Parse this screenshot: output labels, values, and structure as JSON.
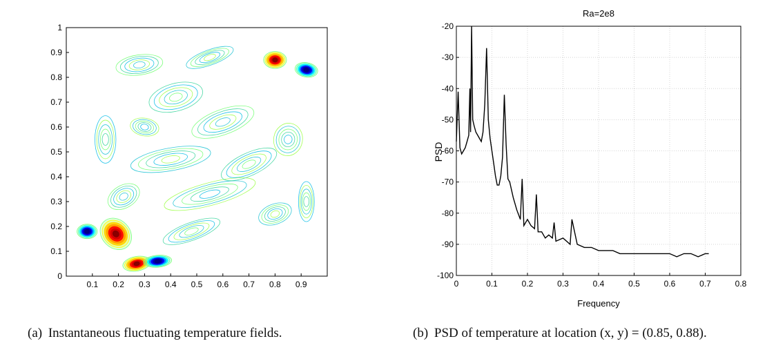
{
  "figure": {
    "panel_a": {
      "caption_tag": "(a)",
      "caption": "Instantaneous fluctuating temperature fields."
    },
    "panel_b": {
      "caption_tag": "(b)",
      "caption": "PSD of temperature at location (x, y) = (0.85, 0.88)."
    }
  },
  "chart_data": [
    {
      "type": "heatmap",
      "title": "",
      "xlabel": "",
      "ylabel": "",
      "xlim": [
        0,
        1
      ],
      "ylim": [
        0,
        1
      ],
      "xticks": [
        0.1,
        0.2,
        0.3,
        0.4,
        0.5,
        0.6,
        0.7,
        0.8,
        0.9
      ],
      "yticks": [
        0,
        0.1,
        0.2,
        0.3,
        0.4,
        0.5,
        0.6,
        0.7,
        0.8,
        0.9,
        1
      ],
      "colormap": [
        "#00007f",
        "#0000ff",
        "#00ffff",
        "#7fff7f",
        "#ffff00",
        "#ff0000",
        "#7f0000"
      ],
      "style": "contour lines",
      "features": [
        {
          "x": 0.8,
          "y": 0.87,
          "sign": "hot"
        },
        {
          "x": 0.92,
          "y": 0.83,
          "sign": "cold"
        },
        {
          "x": 0.19,
          "y": 0.17,
          "sign": "hot"
        },
        {
          "x": 0.08,
          "y": 0.18,
          "sign": "cold"
        },
        {
          "x": 0.27,
          "y": 0.05,
          "sign": "hot"
        },
        {
          "x": 0.35,
          "y": 0.06,
          "sign": "cold"
        }
      ]
    },
    {
      "type": "line",
      "title": "Ra=2e8",
      "xlabel": "Frequency",
      "ylabel": "PSD",
      "xlim": [
        0,
        0.8
      ],
      "ylim": [
        -100,
        -20
      ],
      "xticks": [
        0,
        0.1,
        0.2,
        0.3,
        0.4,
        0.5,
        0.6,
        0.7,
        0.8
      ],
      "yticks": [
        -20,
        -30,
        -40,
        -50,
        -60,
        -70,
        -80,
        -90,
        -100
      ],
      "grid": true,
      "series": [
        {
          "x": [
            0,
            0.005,
            0.01,
            0.015,
            0.02,
            0.025,
            0.03,
            0.035,
            0.038,
            0.04,
            0.043,
            0.046,
            0.05,
            0.055,
            0.06,
            0.065,
            0.07,
            0.075,
            0.08,
            0.085,
            0.09,
            0.095,
            0.1,
            0.105,
            0.11,
            0.115,
            0.12,
            0.125,
            0.13,
            0.135,
            0.14,
            0.145,
            0.15,
            0.16,
            0.17,
            0.18,
            0.185,
            0.19,
            0.2,
            0.21,
            0.22,
            0.225,
            0.23,
            0.24,
            0.25,
            0.26,
            0.27,
            0.275,
            0.28,
            0.3,
            0.32,
            0.325,
            0.34,
            0.36,
            0.38,
            0.4,
            0.42,
            0.44,
            0.46,
            0.48,
            0.5,
            0.52,
            0.54,
            0.56,
            0.58,
            0.6,
            0.62,
            0.64,
            0.66,
            0.68,
            0.7,
            0.71
          ],
          "y": [
            -57,
            -41,
            -59,
            -61,
            -60,
            -59,
            -57,
            -55,
            -40,
            -54,
            -20,
            -50,
            -52,
            -54,
            -55,
            -56,
            -57,
            -54,
            -45,
            -27,
            -50,
            -56,
            -60,
            -64,
            -68,
            -71,
            -71,
            -68,
            -62,
            -42,
            -58,
            -69,
            -70,
            -75,
            -79,
            -82,
            -69,
            -84,
            -82,
            -84,
            -85,
            -74,
            -86,
            -86,
            -88,
            -87,
            -88,
            -83,
            -89,
            -88,
            -90,
            -82,
            -90,
            -91,
            -91,
            -92,
            -92,
            -92,
            -93,
            -93,
            -93,
            -93,
            -93,
            -93,
            -93,
            -93,
            -94,
            -93,
            -93,
            -94,
            -93,
            -93
          ]
        }
      ]
    }
  ]
}
